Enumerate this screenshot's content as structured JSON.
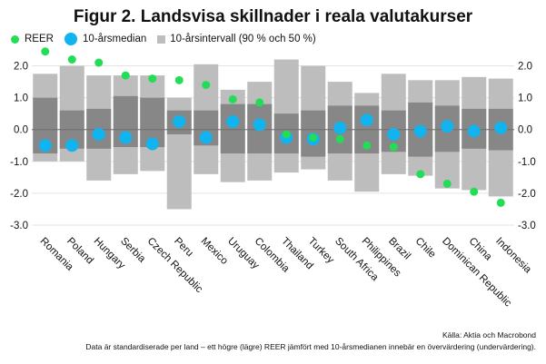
{
  "title": "Figur 2. Landsvisa skillnader i reala valutakurser",
  "legend": {
    "reer": "REER",
    "median": "10-årsmedian",
    "interval": "10-årsintervall (90 % och 50 %)"
  },
  "colors": {
    "reer": "#22dd55",
    "median": "#11b4ee",
    "band90": "#bdbdbd",
    "band50": "#878787"
  },
  "source": "Källa: Aktia och Macrobond",
  "note": "Data är standardiserade per land – ett högre (lägre) REER jämfört med 10-årsmedianen innebär en övervärdering (undervärdering).",
  "chart_data": {
    "type": "range-dot",
    "ylim": [
      -3.0,
      2.5
    ],
    "yticks": [
      -3.0,
      -2.0,
      -1.0,
      0.0,
      1.0,
      2.0
    ],
    "ytick_labels": [
      "-3.0",
      "-2.0",
      "-1.0",
      "0.0",
      "1.0",
      "2.0"
    ],
    "grid": true,
    "categories": [
      "Romania",
      "Poland",
      "Hungary",
      "Serbia",
      "Czech Republic",
      "Peru",
      "Mexico",
      "Uruguay",
      "Colombia",
      "Thailand",
      "Turkey",
      "South Africa",
      "Philippines",
      "Brazil",
      "Chile",
      "Dominican Republic",
      "China",
      "Indonesia"
    ],
    "series": [
      {
        "name": "REER",
        "values": [
          2.45,
          2.2,
          2.1,
          1.7,
          1.6,
          1.55,
          1.4,
          0.95,
          0.85,
          -0.15,
          -0.25,
          -0.3,
          -0.5,
          -0.55,
          -1.4,
          -1.7,
          -1.95,
          -2.3
        ]
      },
      {
        "name": "10-årsmedian",
        "values": [
          -0.5,
          -0.5,
          -0.15,
          -0.25,
          -0.45,
          0.25,
          -0.25,
          0.25,
          0.15,
          -0.25,
          -0.3,
          0.05,
          0.3,
          -0.15,
          -0.05,
          0.1,
          -0.05,
          0.05
        ]
      },
      {
        "name": "10-årsintervall (90 % och 50 %)",
        "p5": [
          -1.0,
          -1.0,
          -1.6,
          -1.4,
          -1.3,
          -2.5,
          -1.4,
          -1.65,
          -1.6,
          -1.35,
          -1.25,
          -1.6,
          -1.95,
          -1.4,
          -1.45,
          -1.85,
          -1.9,
          -2.1
        ],
        "p95": [
          1.75,
          2.0,
          1.7,
          1.7,
          1.7,
          1.0,
          2.05,
          1.25,
          1.5,
          2.2,
          2.0,
          1.5,
          1.15,
          1.75,
          1.55,
          1.55,
          1.65,
          1.6
        ],
        "p25": [
          -0.75,
          -0.6,
          -0.6,
          -0.55,
          -0.55,
          -0.15,
          -0.5,
          -0.75,
          -0.75,
          -0.75,
          -0.85,
          -0.75,
          -0.75,
          -0.7,
          -0.85,
          -0.7,
          -0.6,
          -0.65
        ],
        "p75": [
          1.0,
          0.6,
          0.65,
          1.05,
          1.0,
          0.6,
          0.6,
          0.8,
          0.8,
          0.5,
          0.6,
          0.75,
          0.75,
          0.6,
          0.85,
          0.75,
          0.65,
          0.65
        ]
      }
    ]
  }
}
